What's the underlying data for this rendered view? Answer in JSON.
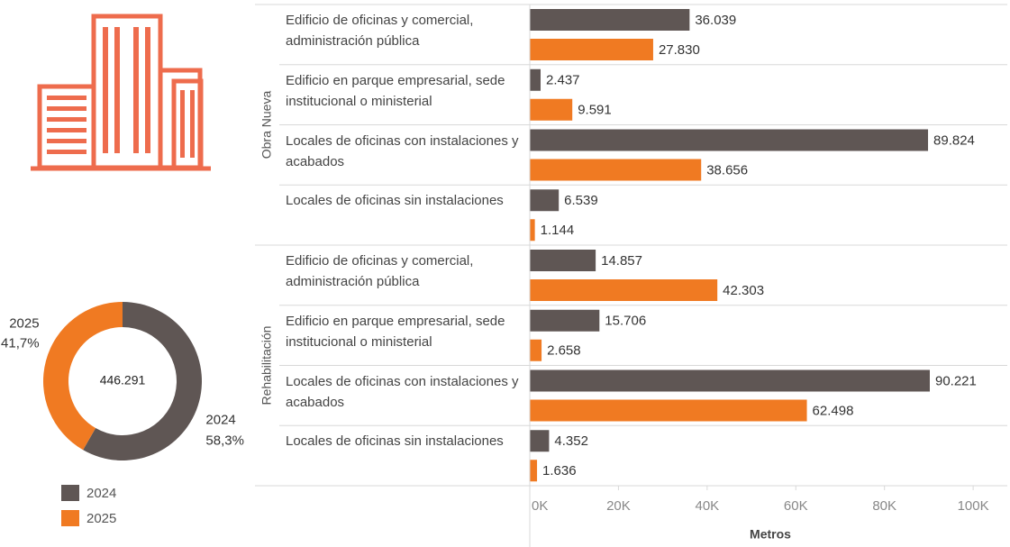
{
  "chart_data": [
    {
      "type": "pie",
      "donut": true,
      "center_label": "446.291",
      "categories": [
        "2024",
        "2025"
      ],
      "values": [
        58.3,
        41.7
      ],
      "value_labels": [
        "58,3%",
        "41,7%"
      ],
      "colors": [
        "#5f5654",
        "#f07a22"
      ],
      "legend": true
    },
    {
      "type": "bar",
      "orientation": "horizontal",
      "xlabel": "Metros",
      "groups": [
        "Obra Nueva",
        "Rehabilitación"
      ],
      "categories": [
        "Edificio de oficinas y comercial, administración pública",
        "Edificio en parque empresarial, sede institucional o ministerial",
        "Locales de oficinas con instalaciones y acabados",
        "Locales de oficinas sin instalaciones",
        "Edificio de oficinas y comercial, administración pública",
        "Edificio en parque empresarial, sede institucional o ministerial",
        "Locales de oficinas con instalaciones y acabados",
        "Locales de oficinas sin instalaciones"
      ],
      "series": [
        {
          "name": "2024",
          "color": "#5f5654",
          "values": [
            36039,
            2437,
            89824,
            6539,
            14857,
            15706,
            90221,
            4352
          ],
          "value_labels": [
            "36.039",
            "2.437",
            "89.824",
            "6.539",
            "14.857",
            "15.706",
            "90.221",
            "4.352"
          ]
        },
        {
          "name": "2025",
          "color": "#f07a22",
          "values": [
            27830,
            9591,
            38656,
            1144,
            42303,
            2658,
            62498,
            1636
          ],
          "value_labels": [
            "27.830",
            "9.591",
            "38.656",
            "1.144",
            "42.303",
            "2.658",
            "62.498",
            "1.636"
          ]
        }
      ],
      "xlim": [
        0,
        107700
      ],
      "xticks": [
        {
          "value": 0,
          "label": "0K"
        },
        {
          "value": 20000,
          "label": "20K"
        },
        {
          "value": 40000,
          "label": "40K"
        },
        {
          "value": 60000,
          "label": "60K"
        },
        {
          "value": 80000,
          "label": "80K"
        },
        {
          "value": 100000,
          "label": "100K"
        }
      ]
    }
  ]
}
